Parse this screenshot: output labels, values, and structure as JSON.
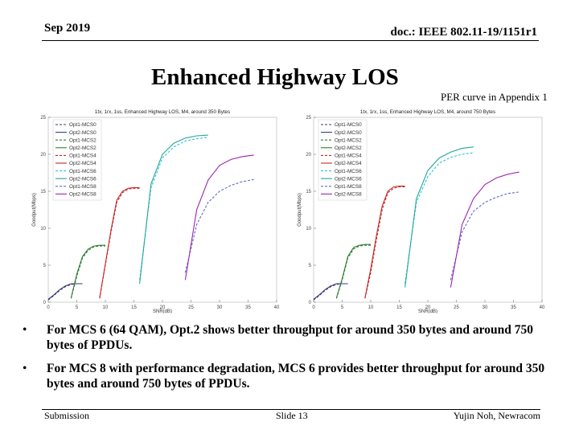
{
  "header": {
    "date": "Sep 2019",
    "doc": "doc.: IEEE 802.11-19/1151r1"
  },
  "title": "Enhanced Highway LOS",
  "note": "PER curve in Appendix 1",
  "chart_data": [
    {
      "type": "line",
      "title": "1tx, 1rx, 1ss, Enhanced Highway LOS, M4, around 350 Bytes",
      "xlabel": "SNR(dB)",
      "ylabel": "Goodput(Mbps)",
      "xlim": [
        0,
        40
      ],
      "ylim": [
        0,
        25
      ],
      "xticks": [
        "0",
        "5",
        "10",
        "15",
        "20",
        "25",
        "30",
        "35",
        "40"
      ],
      "yticks": [
        "0",
        "5",
        "10",
        "15",
        "20",
        "25"
      ],
      "series": [
        {
          "name": "Opt1-MCS0",
          "color": "#3a3a78",
          "dash": true,
          "x": [
            0,
            1,
            2,
            3,
            4,
            5,
            6
          ],
          "y": [
            0.3,
            0.9,
            1.6,
            2.1,
            2.4,
            2.5,
            2.5
          ]
        },
        {
          "name": "Opt2-MCS0",
          "color": "#3a3a78",
          "dash": false,
          "x": [
            0,
            1,
            2,
            3,
            4,
            5,
            6
          ],
          "y": [
            0.4,
            1.0,
            1.7,
            2.2,
            2.5,
            2.5,
            2.5
          ]
        },
        {
          "name": "Opt1-MCS2",
          "color": "#2e7d32",
          "dash": true,
          "x": [
            4,
            5,
            6,
            7,
            8,
            9,
            10
          ],
          "y": [
            0.5,
            3.5,
            6.0,
            7.0,
            7.5,
            7.6,
            7.6
          ]
        },
        {
          "name": "Opt2-MCS2",
          "color": "#2e7d32",
          "dash": false,
          "x": [
            4,
            5,
            6,
            7,
            8,
            9,
            10
          ],
          "y": [
            0.6,
            3.8,
            6.2,
            7.2,
            7.6,
            7.7,
            7.7
          ]
        },
        {
          "name": "Opt1-MCS4",
          "color": "#c62828",
          "dash": true,
          "x": [
            9,
            10,
            11,
            12,
            13,
            14,
            15,
            16
          ],
          "y": [
            0.5,
            5.0,
            9.5,
            13.5,
            14.8,
            15.3,
            15.4,
            15.4
          ]
        },
        {
          "name": "Opt2-MCS4",
          "color": "#c62828",
          "dash": false,
          "x": [
            9,
            10,
            11,
            12,
            13,
            14,
            15,
            16
          ],
          "y": [
            0.6,
            5.2,
            9.8,
            13.8,
            15.0,
            15.4,
            15.5,
            15.5
          ]
        },
        {
          "name": "Opt1-MCS6",
          "color": "#26c6da",
          "dash": true,
          "x": [
            16,
            18,
            20,
            22,
            24,
            26,
            28
          ],
          "y": [
            3.0,
            15.5,
            19.5,
            21.0,
            21.8,
            22.1,
            22.3
          ]
        },
        {
          "name": "Opt2-MCS6",
          "color": "#26a69a",
          "dash": false,
          "x": [
            16,
            18,
            20,
            22,
            24,
            26,
            28
          ],
          "y": [
            2.5,
            16.0,
            20.0,
            21.5,
            22.2,
            22.5,
            22.6
          ]
        },
        {
          "name": "Opt1-MCS8",
          "color": "#5c6bc0",
          "dash": true,
          "x": [
            24,
            26,
            28,
            30,
            32,
            34,
            36
          ],
          "y": [
            4.0,
            10.5,
            13.5,
            15.0,
            15.8,
            16.3,
            16.6
          ]
        },
        {
          "name": "Opt2-MCS8",
          "color": "#9c27b0",
          "dash": false,
          "x": [
            24,
            26,
            28,
            30,
            32,
            34,
            36
          ],
          "y": [
            3.0,
            12.5,
            16.5,
            18.5,
            19.3,
            19.7,
            19.9
          ]
        }
      ]
    },
    {
      "type": "line",
      "title": "1tx, 1rx, 1ss, Enhanced Highway LOS, M4, around 750 Bytes",
      "xlabel": "SNR(dB)",
      "ylabel": "Goodput(Mbps)",
      "xlim": [
        0,
        40
      ],
      "ylim": [
        0,
        25
      ],
      "xticks": [
        "0",
        "5",
        "10",
        "15",
        "20",
        "25",
        "30",
        "35",
        "40"
      ],
      "yticks": [
        "0",
        "5",
        "10",
        "15",
        "20",
        "25"
      ],
      "series": [
        {
          "name": "Opt1-MCS0",
          "color": "#3a3a78",
          "dash": true,
          "x": [
            0,
            1,
            2,
            3,
            4,
            5,
            6
          ],
          "y": [
            0.3,
            0.9,
            1.6,
            2.1,
            2.4,
            2.5,
            2.5
          ]
        },
        {
          "name": "Opt2-MCS0",
          "color": "#3a3a78",
          "dash": false,
          "x": [
            0,
            1,
            2,
            3,
            4,
            5,
            6
          ],
          "y": [
            0.4,
            1.0,
            1.7,
            2.2,
            2.5,
            2.5,
            2.5
          ]
        },
        {
          "name": "Opt1-MCS2",
          "color": "#2e7d32",
          "dash": true,
          "x": [
            4,
            5,
            6,
            7,
            8,
            9,
            10
          ],
          "y": [
            0.5,
            3.0,
            6.0,
            7.2,
            7.6,
            7.7,
            7.7
          ]
        },
        {
          "name": "Opt2-MCS2",
          "color": "#2e7d32",
          "dash": false,
          "x": [
            4,
            5,
            6,
            7,
            8,
            9,
            10
          ],
          "y": [
            0.6,
            3.2,
            6.2,
            7.4,
            7.7,
            7.8,
            7.8
          ]
        },
        {
          "name": "Opt1-MCS4",
          "color": "#c62828",
          "dash": true,
          "x": [
            9,
            10,
            11,
            12,
            13,
            14,
            15,
            16
          ],
          "y": [
            0.5,
            4.0,
            8.5,
            12.5,
            14.8,
            15.4,
            15.6,
            15.6
          ]
        },
        {
          "name": "Opt2-MCS4",
          "color": "#c62828",
          "dash": false,
          "x": [
            9,
            10,
            11,
            12,
            13,
            14,
            15,
            16
          ],
          "y": [
            0.6,
            4.5,
            9.0,
            13.0,
            15.0,
            15.6,
            15.7,
            15.7
          ]
        },
        {
          "name": "Opt1-MCS6",
          "color": "#26c6da",
          "dash": true,
          "x": [
            16,
            18,
            20,
            22,
            24,
            26,
            28
          ],
          "y": [
            2.5,
            13.5,
            17.0,
            18.8,
            19.6,
            20.0,
            20.2
          ]
        },
        {
          "name": "Opt2-MCS6",
          "color": "#26a69a",
          "dash": false,
          "x": [
            16,
            18,
            20,
            22,
            24,
            26,
            28
          ],
          "y": [
            2.0,
            14.0,
            17.8,
            19.5,
            20.3,
            20.8,
            21.0
          ]
        },
        {
          "name": "Opt1-MCS8",
          "color": "#5c6bc0",
          "dash": true,
          "x": [
            24,
            26,
            28,
            30,
            32,
            34,
            36
          ],
          "y": [
            3.0,
            9.5,
            12.3,
            13.5,
            14.2,
            14.7,
            14.9
          ]
        },
        {
          "name": "Opt2-MCS8",
          "color": "#9c27b0",
          "dash": false,
          "x": [
            24,
            26,
            28,
            30,
            32,
            34,
            36
          ],
          "y": [
            2.0,
            10.5,
            14.0,
            15.9,
            16.8,
            17.3,
            17.6
          ]
        }
      ]
    }
  ],
  "bullets": [
    "For MCS 6 (64 QAM), Opt.2 shows better throughput for around 350 bytes and around 750 bytes of PPDUs.",
    "For MCS 8 with performance degradation, MCS 6 provides better throughput for around 350 bytes and around 750 bytes of PPDUs."
  ],
  "bullet_mark": "•",
  "footer": {
    "left": "Submission",
    "center": "Slide 13",
    "right": "Yujin Noh, Newracom"
  }
}
